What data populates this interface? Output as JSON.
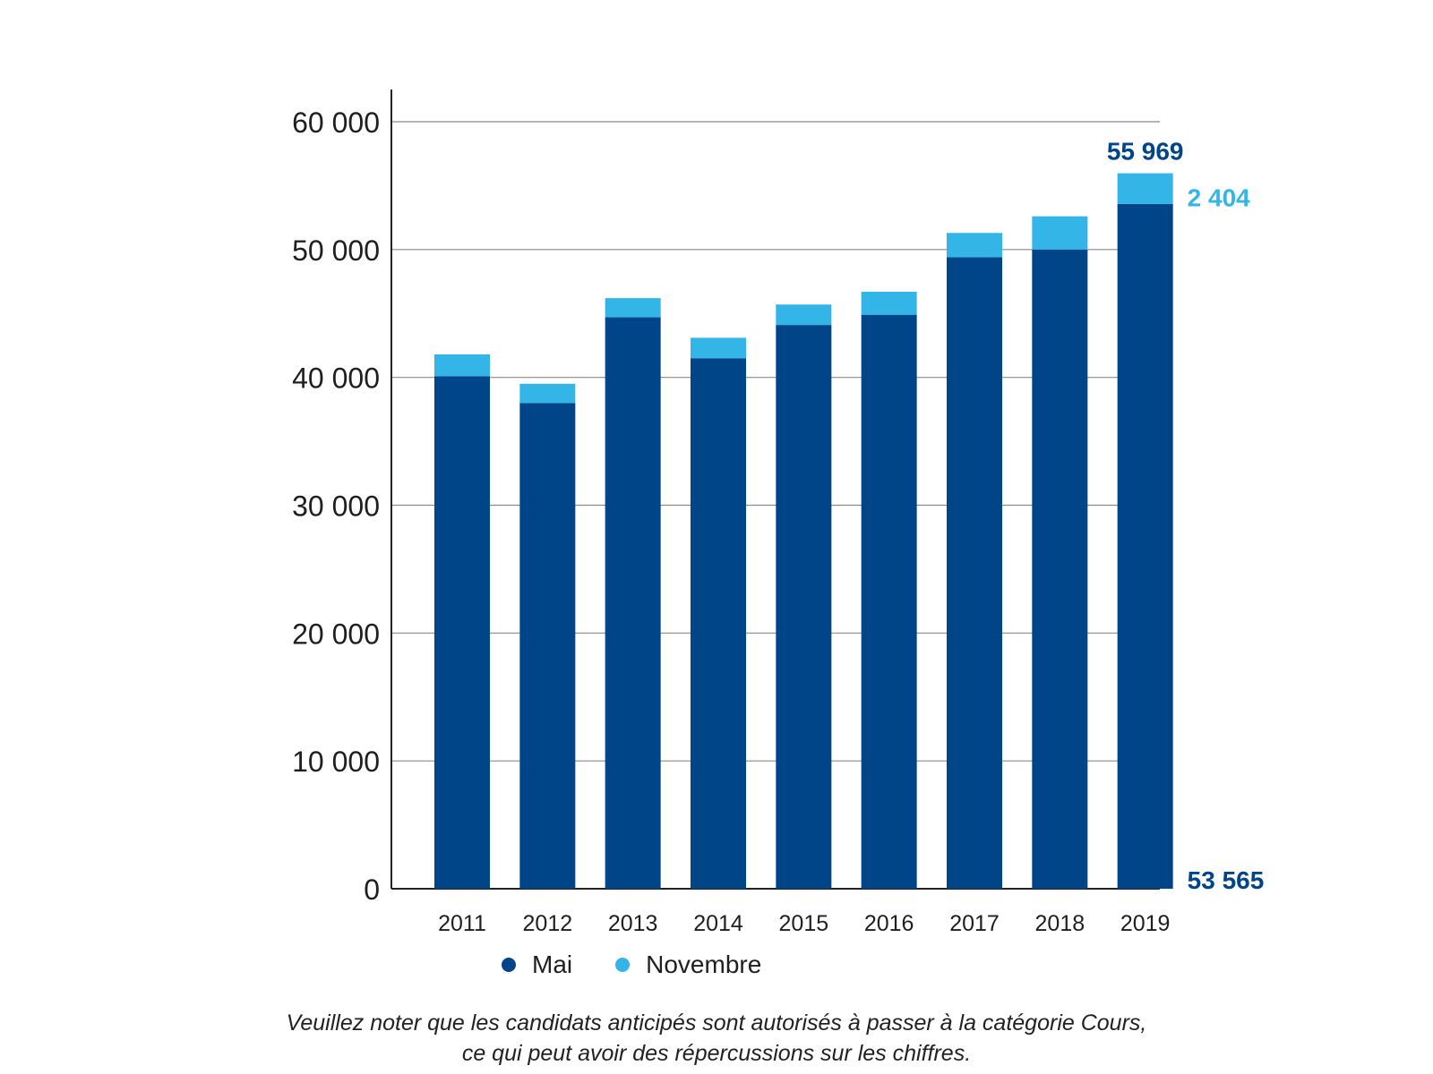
{
  "chart_data": {
    "type": "bar",
    "stacked": true,
    "categories": [
      "2011",
      "2012",
      "2013",
      "2014",
      "2015",
      "2016",
      "2017",
      "2018",
      "2019"
    ],
    "series": [
      {
        "name": "Mai",
        "values": [
          40100,
          38000,
          44700,
          41500,
          44100,
          44900,
          49400,
          50000,
          53565
        ]
      },
      {
        "name": "Novembre",
        "values": [
          1700,
          1500,
          1500,
          1600,
          1600,
          1800,
          1900,
          2600,
          2404
        ]
      }
    ],
    "ylim": [
      0,
      60000
    ],
    "yticks": [
      0,
      10000,
      20000,
      30000,
      40000,
      50000,
      60000
    ],
    "ytick_labels": [
      "0",
      "10 000",
      "20 000",
      "30 000",
      "40 000",
      "50 000",
      "60 000"
    ],
    "grid": true,
    "legend_position": "bottom",
    "colors": {
      "Mai": "#004587",
      "Novembre": "#33b5e8"
    },
    "annotations": [
      {
        "category": "2019",
        "kind": "total",
        "text": "55 969"
      },
      {
        "category": "2019",
        "kind": "series",
        "series": "Novembre",
        "text": "2 404"
      },
      {
        "category": "2019",
        "kind": "series",
        "series": "Mai",
        "text": "53 565"
      }
    ]
  },
  "legend": {
    "items": [
      {
        "label": "Mai",
        "color": "#004587"
      },
      {
        "label": "Novembre",
        "color": "#33b5e8"
      }
    ]
  },
  "footnote": {
    "line1": "Veuillez noter que les candidats anticipés sont autorisés à passer à la catégorie Cours,",
    "line2": "ce qui peut avoir des répercussions sur les chiffres."
  }
}
